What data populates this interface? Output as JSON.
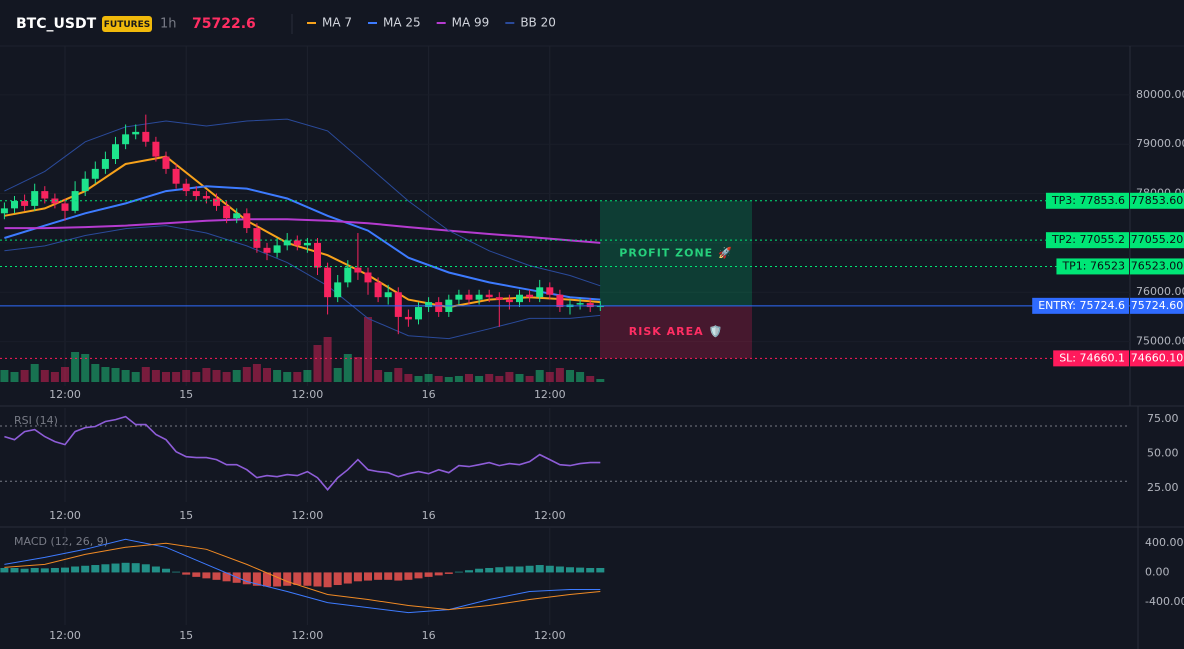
{
  "chart_data": [
    {
      "type": "candlestick",
      "title": "BTC_USDT",
      "badge": "FUTURES",
      "interval": "1h",
      "last_price": 75722.6,
      "up_color": "#1ee38c",
      "down_color": "#f7245f",
      "open": [
        77600,
        77700,
        77850,
        77750,
        78050,
        77900,
        77800,
        77650,
        78050,
        78300,
        78500,
        78700,
        79000,
        79200,
        79250,
        79050,
        78750,
        78500,
        78200,
        78050,
        77950,
        77900,
        77750,
        77500,
        77600,
        77300,
        76900,
        76800,
        76950,
        77050,
        76950,
        77000,
        76500,
        75900,
        76200,
        76500,
        76400,
        76200,
        75900,
        76000,
        75500,
        75450,
        75700,
        75800,
        75600,
        75850,
        75950,
        75850,
        75950,
        75900,
        75850,
        75800,
        75950,
        75900,
        76100,
        75950,
        75700,
        75750,
        75780,
        75700
      ],
      "high": [
        77820,
        77950,
        77980,
        78200,
        78150,
        78000,
        77900,
        78250,
        78450,
        78650,
        78850,
        79150,
        79400,
        79400,
        79600,
        79150,
        78850,
        78600,
        78300,
        78150,
        78050,
        78000,
        77850,
        77700,
        77700,
        77400,
        77000,
        77100,
        77200,
        77150,
        77100,
        77100,
        76600,
        76350,
        76650,
        77200,
        76500,
        76300,
        76150,
        76100,
        75650,
        75800,
        75900,
        75900,
        75950,
        76050,
        76050,
        76050,
        76050,
        76000,
        75950,
        76050,
        76050,
        76250,
        76200,
        76050,
        75850,
        75880,
        75880,
        75820
      ],
      "low": [
        77480,
        77600,
        77650,
        77650,
        77800,
        77700,
        77450,
        77600,
        77950,
        78200,
        78400,
        78600,
        78900,
        79100,
        78950,
        78650,
        78400,
        78100,
        77950,
        77850,
        77800,
        77650,
        77400,
        77400,
        77200,
        76800,
        76650,
        76700,
        76850,
        76850,
        76800,
        76350,
        75550,
        75800,
        76100,
        76250,
        75950,
        75800,
        75750,
        75150,
        75300,
        75350,
        75600,
        75500,
        75500,
        75750,
        75750,
        75750,
        75800,
        75300,
        75650,
        75700,
        75800,
        75800,
        75850,
        75600,
        75550,
        75650,
        75600,
        75620
      ],
      "close": [
        77700,
        77850,
        77750,
        78050,
        77900,
        77800,
        77650,
        78050,
        78300,
        78500,
        78700,
        79000,
        79200,
        79250,
        79050,
        78750,
        78500,
        78200,
        78050,
        77950,
        77900,
        77750,
        77500,
        77600,
        77300,
        76900,
        76800,
        76950,
        77050,
        76950,
        77000,
        76500,
        75900,
        76200,
        76500,
        76400,
        76200,
        75900,
        76000,
        75500,
        75450,
        75700,
        75800,
        75600,
        75850,
        75950,
        75850,
        75950,
        75900,
        75850,
        75800,
        75950,
        75900,
        76100,
        75950,
        75700,
        75750,
        75780,
        75700,
        75722.6
      ],
      "volume": [
        12,
        10,
        12,
        18,
        12,
        10,
        15,
        30,
        28,
        18,
        15,
        14,
        12,
        10,
        15,
        12,
        10,
        10,
        12,
        10,
        14,
        12,
        10,
        12,
        15,
        18,
        14,
        12,
        10,
        10,
        12,
        37,
        45,
        14,
        28,
        25,
        65,
        12,
        10,
        14,
        8,
        6,
        8,
        6,
        5,
        6,
        8,
        6,
        8,
        6,
        10,
        8,
        6,
        12,
        10,
        14,
        12,
        10,
        6,
        3
      ],
      "overlays": [
        {
          "name": "MA 7",
          "color": "#f7a21b",
          "x": [
            0,
            4,
            8,
            12,
            16,
            20,
            24,
            28,
            32,
            36,
            40,
            44,
            48,
            52,
            56,
            59
          ],
          "values": [
            77550,
            77700,
            78050,
            78600,
            78750,
            78100,
            77450,
            77000,
            76750,
            76350,
            75850,
            75700,
            75850,
            75900,
            75850,
            75800
          ]
        },
        {
          "name": "MA 25",
          "color": "#3d7bff",
          "x": [
            0,
            4,
            8,
            12,
            16,
            20,
            24,
            28,
            32,
            36,
            40,
            44,
            48,
            52,
            56,
            59
          ],
          "values": [
            77100,
            77350,
            77600,
            77800,
            78050,
            78150,
            78100,
            77900,
            77550,
            77250,
            76700,
            76400,
            76200,
            76050,
            75900,
            75850
          ]
        },
        {
          "name": "MA 99",
          "color": "#b53bd0",
          "x": [
            0,
            4,
            8,
            12,
            16,
            20,
            24,
            28,
            32,
            36,
            40,
            44,
            48,
            52,
            56,
            59
          ],
          "values": [
            77300,
            77300,
            77320,
            77350,
            77400,
            77450,
            77480,
            77480,
            77450,
            77400,
            77320,
            77250,
            77180,
            77120,
            77050,
            77000
          ]
        },
        {
          "name": "BB 20",
          "color": "#2a4a9a",
          "x": [
            0,
            4,
            8,
            12,
            16,
            20,
            24,
            28,
            32,
            36,
            40,
            44,
            48,
            52,
            56,
            59
          ],
          "upper": [
            78050,
            78450,
            79050,
            79350,
            79470,
            79370,
            79470,
            79510,
            79270,
            78560,
            77850,
            77250,
            76840,
            76540,
            76340,
            76130
          ],
          "lower": [
            76840,
            76940,
            77150,
            77290,
            77350,
            77200,
            76940,
            76600,
            76130,
            75470,
            75120,
            75060,
            75260,
            75470,
            75470,
            75530
          ]
        }
      ],
      "levels": [
        {
          "value": 77853.6,
          "label": "TP3: 77853.6",
          "price_label": "77853.60",
          "color": "#00e676",
          "text_color": "#0b0e14",
          "dash": "2,3"
        },
        {
          "value": 77055.2,
          "label": "TP2: 77055.2",
          "price_label": "77055.20",
          "color": "#00e676",
          "text_color": "#0b0e14",
          "dash": "2,3"
        },
        {
          "value": 76523,
          "label": "TP1: 76523",
          "price_label": "76523.00",
          "color": "#00e676",
          "text_color": "#0b0e14",
          "dash": "2,3"
        },
        {
          "value": 75724.6,
          "label": "ENTRY: 75724.6",
          "price_label": "75724.60",
          "color": "#2f6bff",
          "text_color": "#ffffff",
          "dash": "none"
        },
        {
          "value": 74660.1,
          "label": "SL: 74660.1",
          "price_label": "74660.10",
          "color": "#ff1a5c",
          "text_color": "#ffffff",
          "dash": "2,3"
        }
      ],
      "zones": [
        {
          "label": "PROFIT ZONE 🚀",
          "range": [
            75724.6,
            77853.6
          ],
          "fill": "rgba(0,200,120,0.22)",
          "text_color": "#26d07c"
        },
        {
          "label": "RISK AREA 🛡️",
          "range": [
            74660.1,
            75724.6
          ],
          "fill": "rgba(255,30,90,0.22)",
          "text_color": "#ff2e63"
        }
      ],
      "ylim": [
        74100,
        80950
      ],
      "yticks": [
        {
          "value": 80000,
          "label": "80000.00"
        },
        {
          "value": 79000,
          "label": "79000.00"
        },
        {
          "value": 78000,
          "label": "78000.00"
        },
        {
          "value": 77000,
          "label": "77000.00"
        },
        {
          "value": 76000,
          "label": "76000.00"
        },
        {
          "value": 75000,
          "label": "75000.00"
        }
      ],
      "xticks": [
        {
          "value": 6,
          "label": "12:00"
        },
        {
          "value": 18,
          "label": "15"
        },
        {
          "value": 30,
          "label": "12:00"
        },
        {
          "value": 42,
          "label": "16"
        },
        {
          "value": 54,
          "label": "12:00"
        }
      ],
      "grid": true
    },
    {
      "type": "line",
      "title": "RSI (14)",
      "color": "#8e5dd8",
      "values": [
        62.3,
        60.1,
        65.9,
        67.4,
        62.3,
        58.7,
        56.5,
        65.9,
        68.8,
        69.6,
        73.2,
        74.6,
        76.8,
        71.0,
        71.0,
        63.8,
        60.1,
        51.4,
        47.8,
        47.1,
        47.1,
        45.7,
        42.0,
        42.0,
        38.4,
        32.6,
        34.1,
        33.3,
        34.8,
        34.1,
        37.0,
        32.6,
        23.9,
        32.6,
        38.4,
        45.7,
        38.4,
        37.0,
        36.2,
        33.3,
        35.5,
        37.0,
        35.5,
        38.4,
        36.2,
        41.3,
        40.6,
        42.0,
        43.5,
        41.3,
        42.8,
        42.0,
        44.2,
        49.3,
        45.7,
        42.0,
        41.3,
        42.8,
        43.5,
        43.5
      ],
      "bands": [
        70,
        30
      ],
      "ylim": [
        15,
        83
      ],
      "yticks": [
        {
          "value": 75,
          "label": "75.00"
        },
        {
          "value": 50,
          "label": "50.00"
        },
        {
          "value": 25,
          "label": "25.00"
        }
      ]
    },
    {
      "type": "macd",
      "title": "MACD (12, 26, 9)",
      "up_color": "#26a69a",
      "down_color": "#ef5350",
      "histogram": [
        60,
        60,
        50,
        60,
        55,
        60,
        65,
        80,
        90,
        100,
        110,
        120,
        130,
        125,
        110,
        80,
        50,
        10,
        -30,
        -60,
        -80,
        -100,
        -120,
        -140,
        -160,
        -180,
        -190,
        -190,
        -180,
        -170,
        -180,
        -190,
        -200,
        -170,
        -150,
        -120,
        -110,
        -100,
        -100,
        -110,
        -100,
        -80,
        -60,
        -40,
        -20,
        10,
        30,
        50,
        60,
        70,
        80,
        80,
        90,
        100,
        90,
        80,
        70,
        65,
        60,
        60
      ],
      "macd": {
        "color": "#3d7bff",
        "x": [
          0,
          4,
          8,
          12,
          16,
          20,
          24,
          28,
          32,
          36,
          40,
          44,
          48,
          52,
          56,
          59
        ],
        "values": [
          108,
          203,
          312,
          447,
          339,
          108,
          -122,
          -258,
          -407,
          -475,
          -542,
          -502,
          -366,
          -258,
          -231,
          -231
        ]
      },
      "signal": {
        "color": "#f08a24",
        "x": [
          0,
          4,
          8,
          12,
          16,
          20,
          24,
          28,
          32,
          36,
          40,
          44,
          48,
          52,
          56,
          59
        ],
        "values": [
          68,
          108,
          244,
          339,
          393,
          312,
          108,
          -122,
          -298,
          -366,
          -447,
          -502,
          -447,
          -366,
          -298,
          -258
        ]
      },
      "ylim": [
        -710,
        600
      ],
      "yticks": [
        {
          "value": 400,
          "label": "400.00"
        },
        {
          "value": 0,
          "label": "0.00"
        },
        {
          "value": -400,
          "label": "-400.00"
        }
      ]
    }
  ]
}
